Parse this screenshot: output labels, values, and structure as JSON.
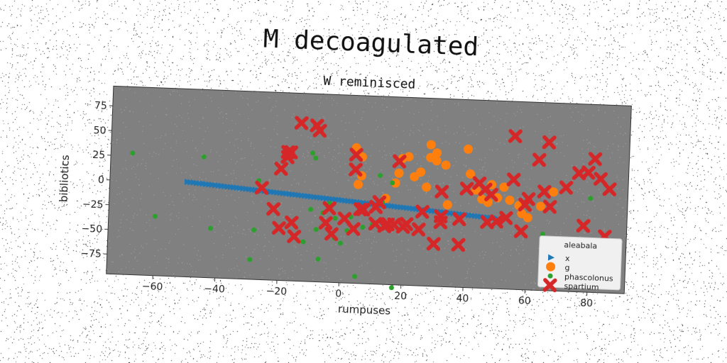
{
  "chart_data": {
    "type": "scatter",
    "title": "M decoagulated",
    "subtitle": "W reminisced",
    "xlabel": "rumpuses",
    "ylabel": "bibliotics",
    "xlim": [
      -75,
      92
    ],
    "ylim": [
      -95,
      95
    ],
    "xticks": [
      -60,
      -40,
      -20,
      0,
      20,
      40,
      60,
      80
    ],
    "yticks": [
      75,
      50,
      25,
      0,
      -25,
      -50,
      -75
    ],
    "xtick_labels": [
      "−60",
      "−40",
      "−20",
      "0",
      "20",
      "40",
      "60",
      "80"
    ],
    "ytick_labels": [
      "75",
      "50",
      "25",
      "0",
      "−25",
      "−50",
      "−75"
    ],
    "grid": false,
    "legend": {
      "title": "aleabala",
      "position": "lower-right"
    },
    "series": [
      {
        "name": "x",
        "marker": "triangle-right",
        "color": "#1f77b4",
        "x": [
          -50,
          -49,
          -48,
          -47,
          -46,
          -45,
          -44,
          -43,
          -42,
          -41,
          -40,
          -39,
          -38,
          -37,
          -36,
          -35,
          -34,
          -33,
          -32,
          -31,
          -30,
          -29,
          -28,
          -27,
          -26,
          -25,
          -24,
          -23,
          -22,
          -21,
          -20,
          -19,
          -18,
          -17,
          -16,
          -15,
          -14,
          -13,
          -12,
          -11,
          -10,
          -9,
          -8,
          -7,
          -6,
          -5,
          -4,
          -3,
          -2,
          -1,
          0,
          1,
          2,
          3,
          4,
          5,
          6,
          7,
          8,
          9,
          10,
          11,
          12,
          13,
          14,
          15,
          16,
          17,
          18,
          19,
          20,
          21,
          22,
          23,
          24,
          25,
          26,
          27,
          28,
          29,
          30,
          31,
          32,
          33,
          34,
          35,
          36,
          37,
          38,
          39,
          40,
          41,
          42,
          43,
          44,
          45,
          46,
          47,
          48,
          49,
          50
        ],
        "y": [
          1.0,
          0.7,
          0.5,
          0.2,
          0.0,
          -0.3,
          -0.5,
          -0.8,
          -1.0,
          -1.3,
          -1.5,
          -1.8,
          -2.0,
          -2.3,
          -2.5,
          -2.8,
          -3.0,
          -3.3,
          -3.5,
          -3.8,
          -4.0,
          -4.3,
          -4.5,
          -4.8,
          -5.0,
          -5.3,
          -5.5,
          -5.8,
          -6.0,
          -6.3,
          -6.5,
          -6.8,
          -7.0,
          -7.3,
          -7.5,
          -7.8,
          -8.0,
          -8.3,
          -8.5,
          -8.8,
          -9.0,
          -9.3,
          -9.5,
          -9.8,
          -10.0,
          -10.3,
          -10.5,
          -10.8,
          -11.0,
          -11.3,
          -11.5,
          -11.8,
          -12.0,
          -12.3,
          -12.5,
          -12.8,
          -13.0,
          -13.3,
          -13.5,
          -13.8,
          -14.0,
          -14.3,
          -14.5,
          -14.8,
          -15.0,
          -15.3,
          -15.5,
          -15.8,
          -16.0,
          -16.3,
          -16.5,
          -16.8,
          -17.0,
          -17.3,
          -17.5,
          -17.8,
          -18.0,
          -18.3,
          -18.5,
          -18.8,
          -19.0,
          -19.3,
          -19.5,
          -19.8,
          -20.0,
          -20.3,
          -20.5,
          -20.8,
          -21.0,
          -21.3,
          -21.5,
          -21.8,
          -22.0,
          -22.3,
          -22.5,
          -22.8,
          -23.0,
          -23.3,
          -23.5,
          -23.8,
          -24.0
        ]
      },
      {
        "name": "g",
        "marker": "circle",
        "color": "#ff7f0e",
        "x": [
          4,
          6,
          6,
          5,
          14,
          17,
          19,
          18,
          21,
          23,
          25,
          27,
          28,
          28,
          30,
          30,
          33,
          34,
          40,
          41,
          43,
          45,
          47,
          48,
          50,
          52,
          54,
          57,
          58,
          60,
          64,
          68
        ],
        "y": [
          42,
          33,
          14,
          5,
          -8,
          8,
          33,
          18,
          35,
          15,
          20,
          5,
          48,
          35,
          40,
          32,
          28,
          -12,
          45,
          20,
          4,
          -5,
          -8,
          10,
          -3,
          8,
          -5,
          -10,
          -18,
          -22,
          -10,
          5
        ]
      },
      {
        "name": "phascolonus",
        "marker": "dot",
        "color": "#2ca02c",
        "x": [
          -68,
          -60,
          -45,
          -42,
          -29,
          -28,
          -27,
          -12,
          -10,
          -10,
          -9,
          -8,
          -7,
          -6,
          -4,
          -2,
          -2,
          0,
          2,
          3,
          5,
          7,
          10,
          12,
          13,
          16,
          17,
          60,
          65,
          80
        ],
        "y": [
          28,
          -35,
          27,
          -45,
          -75,
          -45,
          5,
          -55,
          -22,
          35,
          30,
          -42,
          -72,
          -25,
          -15,
          -30,
          -50,
          -55,
          -42,
          -28,
          -88,
          -38,
          -35,
          15,
          -12,
          8,
          -98,
          -12,
          -38,
          0
        ]
      },
      {
        "name": "spartium",
        "marker": "x",
        "color": "#d62728",
        "x": [
          -26,
          -22,
          -20,
          -20,
          -18,
          -17,
          -14,
          -18,
          -16,
          -15,
          -9,
          -8,
          -5,
          -4,
          -3,
          1,
          4,
          4,
          4,
          6,
          7,
          11,
          12,
          11,
          14,
          15,
          17,
          18,
          20,
          21,
          25,
          26,
          30,
          32,
          32,
          32,
          38,
          38,
          40,
          44,
          46,
          47,
          48,
          50,
          53,
          55,
          55,
          58,
          59,
          60,
          63,
          65,
          66,
          67,
          72,
          76,
          78,
          79,
          81,
          83,
          85,
          86
        ],
        "y": [
          -2,
          -23,
          -42,
          18,
          30,
          35,
          65,
          35,
          -36,
          -50,
          63,
          58,
          -35,
          -20,
          -46,
          -30,
          -40,
          35,
          20,
          -20,
          -20,
          -17,
          -12,
          -34,
          -36,
          -34,
          -34,
          30,
          -36,
          -33,
          -38,
          -20,
          -52,
          -24,
          1,
          -30,
          -52,
          -26,
          5,
          11,
          5,
          -28,
          0,
          -27,
          -23,
          16,
          60,
          -36,
          -9,
          -3,
          37,
          5,
          55,
          -10,
          10,
          25,
          -28,
          26,
          40,
          20,
          -38,
          10
        ]
      }
    ]
  }
}
